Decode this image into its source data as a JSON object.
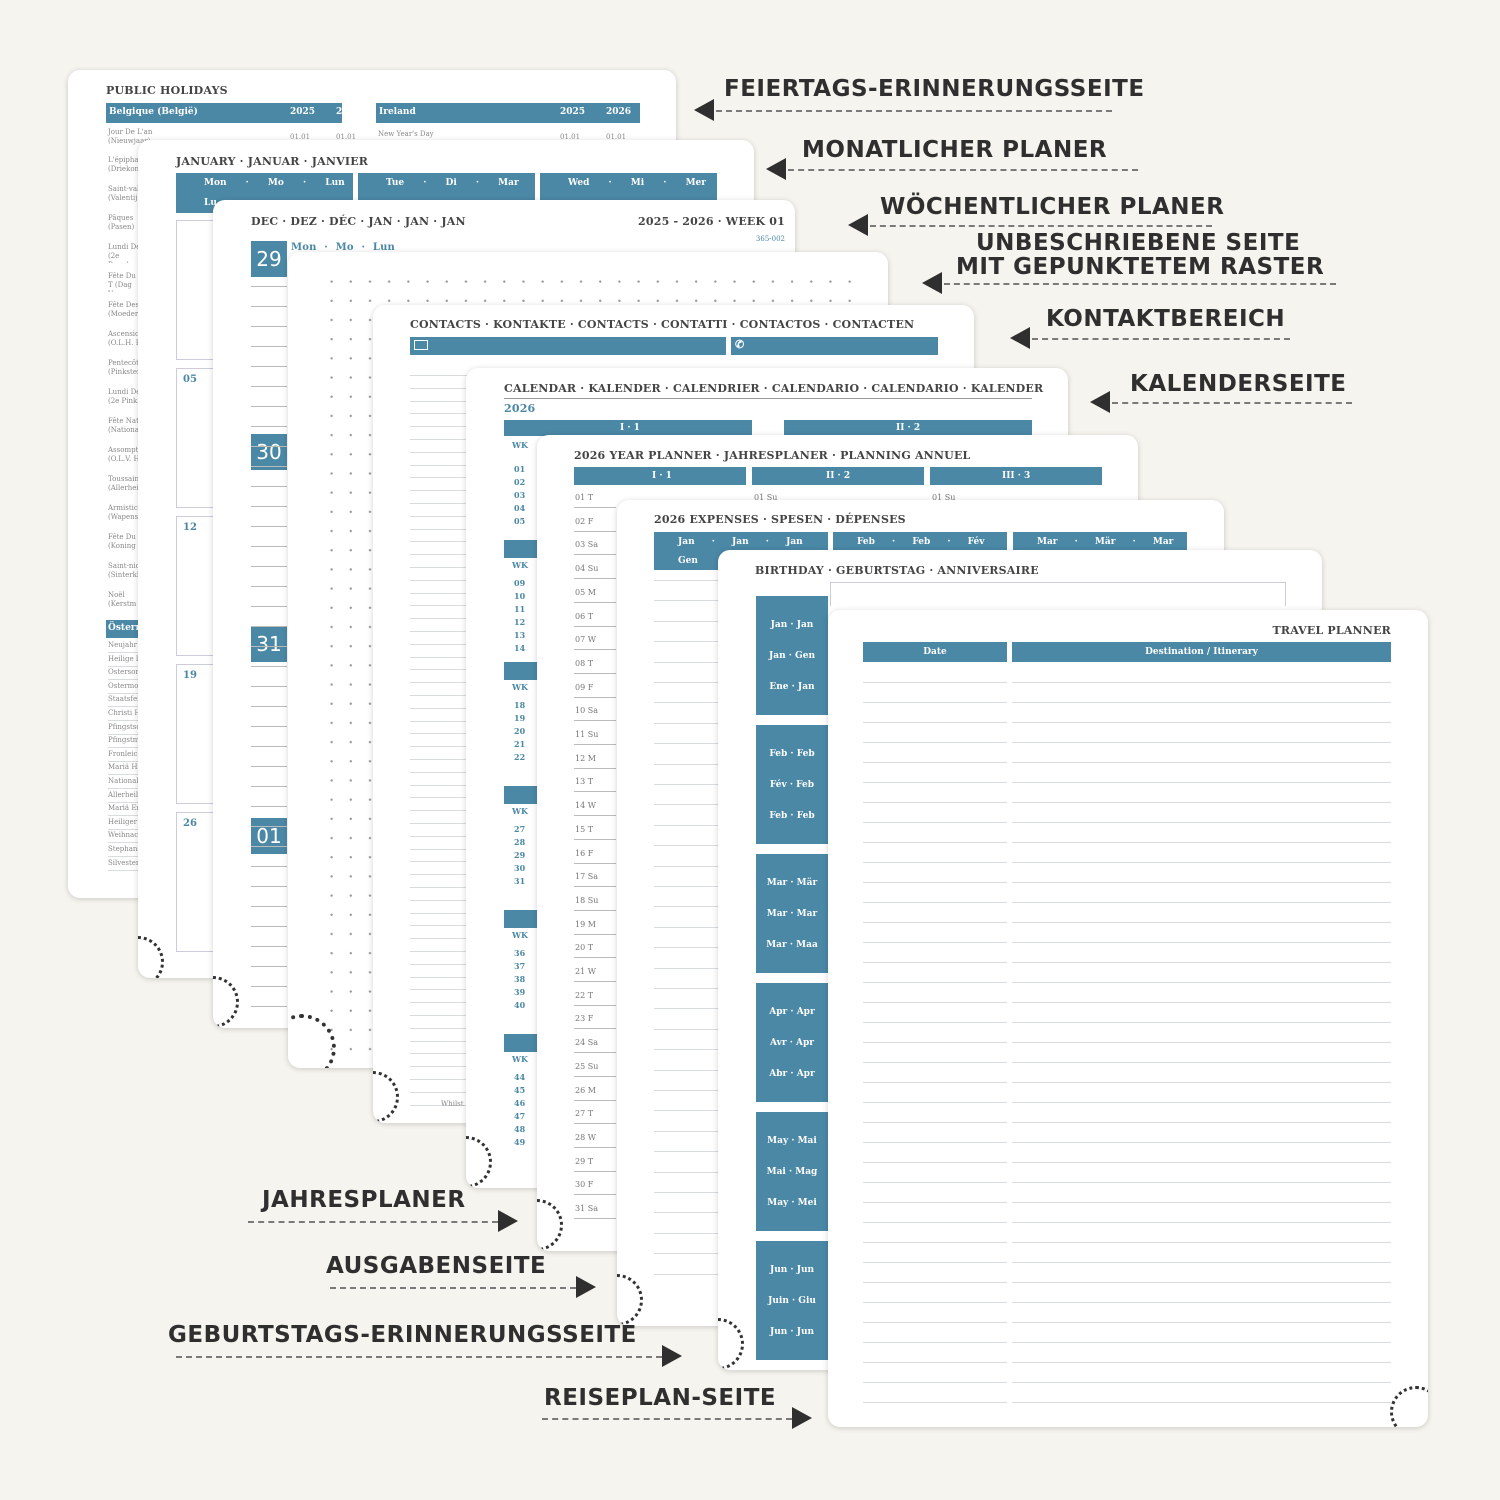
{
  "colors": {
    "accent": "#4a88a6",
    "background": "#f6f4ee"
  },
  "labels_right": [
    "FEIERTAGS-ERINNERUNGSSEITE",
    "MONATLICHER PLANER",
    "WÖCHENTLICHER PLANER",
    "UNBESCHRIEBENE SEITE",
    "MIT GEPUNKTETEM RASTER",
    "KONTAKTBEREICH",
    "KALENDERSEITE"
  ],
  "labels_left": [
    "JAHRESPLANER",
    "AUSGABENSEITE",
    "GEBURTSTAGS-ERINNERUNGSSEITE",
    "REISEPLAN-SEITE"
  ],
  "holidays": {
    "title": "PUBLIC HOLIDAYS",
    "left_country": "Belgique (België)",
    "right_country": "Ireland",
    "year1": "2025",
    "year2": "2026",
    "first_left": "Jour De L'an (Nieuwjaar)",
    "first_right": "New Year's Day",
    "date": "01.01",
    "list1": [
      "L'épiphani (Driekoni",
      "Saint-val (Valentij",
      "Pâques (Pasen)",
      "Lundi De (2e Paasd",
      "Fête Du T (Dag Van",
      "Fête Des (Moeder",
      "Ascensio (O.L.H. H",
      "Pentecôt (Pinkster",
      "Lundi De (2e Pink",
      "Fête Nat (Nationa",
      "Assompt (O.L.V. H",
      "Toussain (Allerhei",
      "Armistic (Wapens",
      "Fête Du I (Koning",
      "Saint-nic (Sinterkl",
      "Noël (Kerstm"
    ],
    "at_country": "Österr",
    "list2": [
      "Neujahr",
      "Heilige D",
      "Ostersor",
      "Ostermo",
      "Staatsfei",
      "Christi H",
      "Pfingstsc",
      "Pfingstm",
      "Fronleich",
      "Mariä Hi",
      "National",
      "Allerheili",
      "Mariä Em",
      "Heiliger /",
      "Weihnac",
      "Stephans",
      "Silvester"
    ]
  },
  "monthly": {
    "title": "JANUARY · JANUAR · JANVIER",
    "days": [
      "Mon · Mo · Lun",
      "Tue · Di · Mar",
      "Wed · Mi · Mer"
    ],
    "sub": "Lu",
    "weeks": [
      "05",
      "12",
      "19",
      "26"
    ]
  },
  "weekly": {
    "title": "DEC · DEZ · DÉC · JAN · JAN · JAN",
    "right": "2025 - 2026 · WEEK 01",
    "daycount": "365-002",
    "dayname": "Mon · Mo · Lun",
    "days": [
      "29",
      "30",
      "31",
      "01"
    ]
  },
  "contacts": {
    "title": "CONTACTS · KONTAKTE · CONTACTS · CONTATTI · CONTACTOS · CONTACTEN",
    "email_icon": "envelope-icon",
    "phone_icon": "phone-icon",
    "footer": "Whilst"
  },
  "calendar": {
    "title": "CALENDAR · KALENDER · CALENDRIER · CALENDARIO · CALENDARIO · KALENDER",
    "year": "2026",
    "q1": "I · 1",
    "q2": "II · 2",
    "wk": "WK",
    "groups": [
      [
        "01",
        "02",
        "03",
        "04",
        "05"
      ],
      [
        "09",
        "10",
        "11",
        "12",
        "13",
        "14"
      ],
      [
        "18",
        "19",
        "20",
        "21",
        "22"
      ],
      [
        "27",
        "28",
        "29",
        "30",
        "31"
      ],
      [
        "36",
        "37",
        "38",
        "39",
        "40"
      ],
      [
        "44",
        "45",
        "46",
        "47",
        "48",
        "49"
      ]
    ]
  },
  "yearplanner": {
    "title": "2026 YEAR PLANNER · JAHRESPLANER · PLANNING ANNUEL",
    "cols": [
      "I · 1",
      "II · 2",
      "III · 3"
    ],
    "rows": [
      "01 T",
      "02 F",
      "03 Sa",
      "04 Su",
      "05 M",
      "06 T",
      "07 W",
      "08 T",
      "09 F",
      "10 Sa",
      "11 Su",
      "12 M",
      "13 T",
      "14 W",
      "15 T",
      "16 F",
      "17 Sa",
      "18 Su",
      "19 M",
      "20 T",
      "21 W",
      "22 T",
      "23 F",
      "24 Sa",
      "25 Su",
      "26 M",
      "27 T",
      "28 W",
      "29 T",
      "30 F",
      "31 Sa"
    ],
    "col2_first": "01 Su",
    "col3_first": "01 Su"
  },
  "expenses": {
    "title": "2026 EXPENSES · SPESEN · DÉPENSES",
    "months": [
      "Jan · Jan · Jan",
      "Feb · Feb · Fév",
      "Mar · Mär · Mar"
    ],
    "sub": "Gen"
  },
  "birthday": {
    "title": "BIRTHDAY · GEBURTSTAG · ANNIVERSAIRE",
    "groups": [
      [
        "Jan · Jan",
        "Jan · Gen",
        "Ene · Jan"
      ],
      [
        "Feb · Feb",
        "Fév · Feb",
        "Feb · Feb"
      ],
      [
        "Mar · Mär",
        "Mar · Mar",
        "Mar · Maa"
      ],
      [
        "Apr · Apr",
        "Avr · Apr",
        "Abr · Apr"
      ],
      [
        "May · Mai",
        "Mai · Mag",
        "May · Mei"
      ],
      [
        "Jun · Jun",
        "Juin · Giu",
        "Jun · Jun"
      ]
    ]
  },
  "travel": {
    "title": "TRAVEL PLANNER",
    "col_date": "Date",
    "col_dest": "Destination / Itinerary"
  }
}
